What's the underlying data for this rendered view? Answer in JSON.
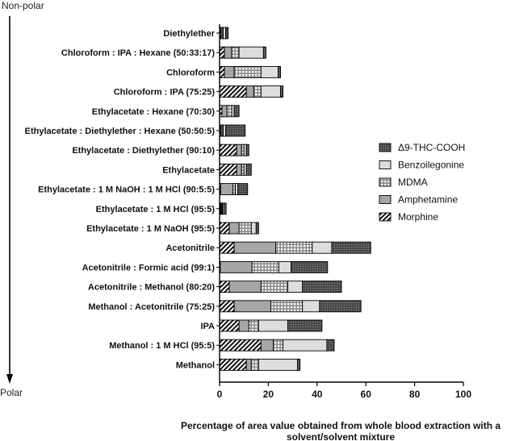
{
  "polarity": {
    "top": "Non-polar",
    "bottom": "Polar"
  },
  "chart_data": {
    "type": "bar",
    "orientation": "horizontal",
    "stacked": true,
    "xlabel": "Percentage of area value obtained from whole blood extraction with a solvent/solvent mixture",
    "xlim": [
      0,
      100
    ],
    "xticks": [
      0,
      20,
      40,
      60,
      80,
      100
    ],
    "legend_position": "right",
    "categories": [
      "Diethylether",
      "Chloroform : IPA : Hexane (50:33:17)",
      "Chloroform",
      "Chloroform : IPA (75:25)",
      "Ethylacetate : Hexane (70:30)",
      "Ethylacetate : Diethylether : Hexane (50:50:5)",
      "Ethylacetate : Diethylether (90:10)",
      "Ethylacetate",
      "Ethylacetate : 1 M NaOH : 1 M HCl (90:5:5)",
      "Ethylacetate : 1 M HCl (95:5)",
      "Ethylacetate : 1 M NaOH (95:5)",
      "Acetonitrile",
      "Acetonitrile : Formic acid (99:1)",
      "Acetonitrile : Methanol (80:20)",
      "Methanol : Acetonitrile (75:25)",
      "IPA",
      "Methanol : 1 M HCl (95:5)",
      "Methanol"
    ],
    "series": [
      {
        "name": "Morphine",
        "pattern": "diagonal",
        "values": [
          0.5,
          2,
          2,
          11,
          1,
          0.5,
          7,
          7,
          0.5,
          0.3,
          4,
          6,
          0.3,
          4,
          6,
          8,
          17,
          11
        ]
      },
      {
        "name": "Amphetamine",
        "pattern": "gray",
        "values": [
          0.5,
          3,
          4,
          3,
          2,
          0.5,
          2,
          2,
          5,
          0.3,
          4,
          17,
          13,
          13,
          15,
          4,
          5,
          2
        ]
      },
      {
        "name": "MDMA",
        "pattern": "grid",
        "values": [
          0.5,
          3,
          11,
          3,
          2,
          0.5,
          1,
          1,
          1,
          0.3,
          5,
          15,
          11,
          11,
          13,
          4,
          4,
          3
        ]
      },
      {
        "name": "Benzoilegonine",
        "pattern": "light",
        "values": [
          1,
          10,
          7,
          8,
          1,
          1,
          1,
          1,
          1,
          0.3,
          2,
          8,
          5,
          6,
          7,
          12,
          18,
          16
        ]
      },
      {
        "name": "Δ9-THC-COOH",
        "pattern": "dots",
        "values": [
          1,
          1,
          1,
          1,
          2,
          8,
          1,
          2,
          4,
          1.5,
          1,
          16,
          15,
          16,
          17,
          14,
          3,
          1
        ]
      }
    ]
  },
  "colors": {
    "axis": "#000000",
    "light": "#dddddd",
    "gray": "#a6a6a6",
    "dark": "#4a4a4a"
  }
}
